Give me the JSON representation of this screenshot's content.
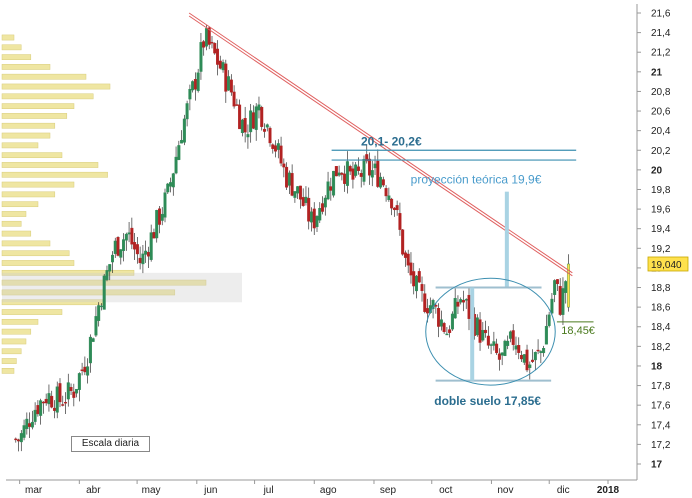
{
  "chart_data": {
    "type": "candlestick",
    "scale_note": "Escala diaria",
    "x_axis": {
      "tick_labels": [
        "mar",
        "abr",
        "may",
        "jun",
        "jul",
        "ago",
        "sep",
        "oct",
        "nov",
        "dic",
        "2018"
      ]
    },
    "y_axis": {
      "position": "right",
      "range": [
        16.9,
        21.6
      ],
      "tick_labels": [
        "17",
        "17,2",
        "17,4",
        "17,6",
        "17,8",
        "18",
        "18,2",
        "18,4",
        "18,6",
        "18,8",
        "19",
        "19,2",
        "19,4",
        "19,6",
        "19,8",
        "20",
        "20,2",
        "20,4",
        "20,6",
        "20,8",
        "21",
        "21,2",
        "21,4",
        "21,6"
      ],
      "tick_values": [
        17.0,
        17.2,
        17.4,
        17.6,
        17.8,
        18.0,
        18.2,
        18.4,
        18.6,
        18.8,
        19.0,
        19.2,
        19.4,
        19.6,
        19.8,
        20.0,
        20.2,
        20.4,
        20.6,
        20.8,
        21.0,
        21.2,
        21.4,
        21.6
      ],
      "bold_values": [
        17.0,
        18.0,
        19.0,
        20.0,
        21.0
      ],
      "grid": false
    },
    "last_price": {
      "label": "19,040",
      "value": 19.04
    },
    "close_path": [
      [
        "2017-03-01",
        17.25
      ],
      [
        "2017-03-08",
        17.55
      ],
      [
        "2017-03-15",
        17.7
      ],
      [
        "2017-03-22",
        17.65
      ],
      [
        "2017-03-29",
        17.75
      ],
      [
        "2017-04-05",
        18.1
      ],
      [
        "2017-04-12",
        18.7
      ],
      [
        "2017-04-19",
        19.2
      ],
      [
        "2017-04-26",
        19.35
      ],
      [
        "2017-05-03",
        19.05
      ],
      [
        "2017-05-10",
        19.4
      ],
      [
        "2017-05-17",
        19.75
      ],
      [
        "2017-05-24",
        20.4
      ],
      [
        "2017-05-31",
        20.9
      ],
      [
        "2017-06-05",
        21.35
      ],
      [
        "2017-06-12",
        21.1
      ],
      [
        "2017-06-19",
        20.8
      ],
      [
        "2017-06-26",
        20.4
      ],
      [
        "2017-07-03",
        20.65
      ],
      [
        "2017-07-10",
        20.35
      ],
      [
        "2017-07-17",
        19.95
      ],
      [
        "2017-07-24",
        19.75
      ],
      [
        "2017-07-31",
        19.45
      ],
      [
        "2017-08-07",
        19.8
      ],
      [
        "2017-08-14",
        20.05
      ],
      [
        "2017-08-21",
        19.9
      ],
      [
        "2017-08-28",
        20.0
      ],
      [
        "2017-09-04",
        19.95
      ],
      [
        "2017-09-11",
        19.7
      ],
      [
        "2017-09-18",
        19.0
      ],
      [
        "2017-09-25",
        18.7
      ],
      [
        "2017-10-02",
        18.6
      ],
      [
        "2017-10-09",
        18.35
      ],
      [
        "2017-10-16",
        18.7
      ],
      [
        "2017-10-23",
        18.45
      ],
      [
        "2017-10-30",
        18.2
      ],
      [
        "2017-11-06",
        18.05
      ],
      [
        "2017-11-13",
        18.3
      ],
      [
        "2017-11-20",
        18.0
      ],
      [
        "2017-11-27",
        18.15
      ],
      [
        "2017-12-04",
        18.85
      ],
      [
        "2017-12-07",
        18.6
      ],
      [
        "2017-12-11",
        19.04
      ]
    ],
    "volume_profile": [
      [
        21.35,
        0.05
      ],
      [
        21.25,
        0.08
      ],
      [
        21.15,
        0.12
      ],
      [
        21.05,
        0.2
      ],
      [
        20.95,
        0.35
      ],
      [
        20.85,
        0.45
      ],
      [
        20.75,
        0.38
      ],
      [
        20.65,
        0.3
      ],
      [
        20.55,
        0.27
      ],
      [
        20.45,
        0.22
      ],
      [
        20.35,
        0.2
      ],
      [
        20.25,
        0.15
      ],
      [
        20.15,
        0.25
      ],
      [
        20.05,
        0.4
      ],
      [
        19.95,
        0.44
      ],
      [
        19.85,
        0.3
      ],
      [
        19.75,
        0.22
      ],
      [
        19.65,
        0.15
      ],
      [
        19.55,
        0.1
      ],
      [
        19.45,
        0.08
      ],
      [
        19.35,
        0.12
      ],
      [
        19.25,
        0.2
      ],
      [
        19.15,
        0.28
      ],
      [
        19.05,
        0.3
      ],
      [
        18.95,
        0.55
      ],
      [
        18.85,
        0.85
      ],
      [
        18.75,
        0.72
      ],
      [
        18.65,
        0.42
      ],
      [
        18.55,
        0.25
      ],
      [
        18.45,
        0.15
      ],
      [
        18.35,
        0.12
      ],
      [
        18.25,
        0.1
      ],
      [
        18.15,
        0.08
      ],
      [
        18.05,
        0.06
      ],
      [
        17.95,
        0.05
      ]
    ],
    "resistance_trendline": {
      "from": [
        "2017-05-28",
        21.6
      ],
      "to": [
        "2017-12-13",
        18.95
      ]
    },
    "annotations": {
      "target_zone": {
        "label": "20,1- 20,2€",
        "low": 20.1,
        "high": 20.2
      },
      "projection": {
        "label": "proyección teórica 19,9€",
        "value": 19.9
      },
      "neckline": {
        "value": 18.8
      },
      "double_bottom": {
        "label": "doble suelo 17,85€",
        "value": 17.85
      },
      "support": {
        "label": "18,45€",
        "value": 18.45
      }
    },
    "colors": {
      "up_candle": "#2e8b57",
      "down_candle": "#b22222",
      "trendline": "#e06060",
      "annotation_blue": "#3c8fb0",
      "support_green": "#4a7a1e",
      "volume_profile": "#efe6a2",
      "price_tag": "#ffe14d"
    }
  }
}
